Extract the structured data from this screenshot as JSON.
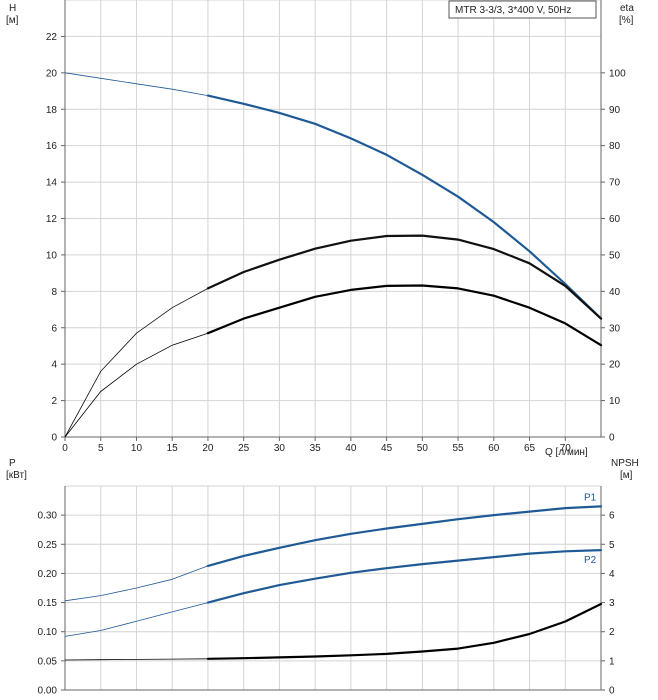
{
  "chart_data": [
    {
      "type": "line",
      "legend_box": "MTR 3-3/3, 3*400 V, 50Hz",
      "x_axis": {
        "label": "Q [л/мин]",
        "ticks": [
          "0",
          "5",
          "10",
          "15",
          "20",
          "25",
          "30",
          "35",
          "40",
          "45",
          "50",
          "55",
          "60",
          "65",
          "70"
        ],
        "range": [
          0,
          75
        ]
      },
      "y_left": {
        "label_line1": "H",
        "label_line2": "[м]",
        "ticks": [
          "0",
          "2",
          "4",
          "6",
          "8",
          "10",
          "12",
          "14",
          "16",
          "18",
          "20",
          "22"
        ],
        "range": [
          0,
          24
        ]
      },
      "y_right": {
        "label_line1": "eta",
        "label_line2": "[%]",
        "ticks": [
          "0",
          "10",
          "20",
          "30",
          "40",
          "50",
          "60",
          "70",
          "80",
          "90",
          "100"
        ],
        "range": [
          0,
          120
        ]
      },
      "grid": true,
      "series": [
        {
          "axis": "left",
          "color": "#1f5a96",
          "x": [
            0,
            5,
            10,
            15,
            20,
            25,
            30,
            35,
            40,
            45,
            50,
            55,
            60,
            65,
            70,
            75
          ],
          "y": [
            20,
            19.7,
            19.4,
            19.1,
            18.75,
            18.3,
            17.8,
            17.2,
            16.4,
            15.5,
            14.4,
            13.2,
            11.8,
            10.2,
            8.4,
            6.5
          ]
        },
        {
          "axis": "right",
          "color": "#111111",
          "x": [
            0,
            5,
            10,
            15,
            20,
            25,
            30,
            35,
            40,
            45,
            50,
            55,
            60,
            65,
            70,
            75
          ],
          "y": [
            0,
            18,
            28.5,
            35.5,
            40.8,
            45.3,
            48.7,
            51.7,
            53.9,
            55.2,
            55.3,
            54.2,
            51.6,
            47.7,
            41.5,
            32.5
          ]
        },
        {
          "axis": "right",
          "color": "#000000",
          "x": [
            0,
            5,
            10,
            15,
            20,
            25,
            30,
            35,
            40,
            45,
            50,
            55,
            60,
            65,
            70,
            75
          ],
          "y": [
            0,
            12.5,
            20,
            25.2,
            28.5,
            32.5,
            35.5,
            38.5,
            40.4,
            41.5,
            41.6,
            40.8,
            38.8,
            35.5,
            31.2,
            25.2
          ]
        }
      ]
    },
    {
      "type": "line",
      "x_axis": {
        "range": [
          0,
          75
        ]
      },
      "y_left": {
        "label_line1": "P",
        "label_line2": "[кВт]",
        "ticks": [
          "0.00",
          "0.05",
          "0.10",
          "0.15",
          "0.20",
          "0.25",
          "0.30"
        ],
        "range": [
          0,
          0.35
        ]
      },
      "y_right": {
        "label_line1": "NPSH",
        "label_line2": "[м]",
        "ticks": [
          "0",
          "1",
          "2",
          "3",
          "4",
          "5",
          "6"
        ],
        "range": [
          0,
          7
        ]
      },
      "grid": true,
      "series": [
        {
          "name": "P1",
          "axis": "left",
          "color": "#1f5a96",
          "x": [
            0,
            5,
            10,
            15,
            20,
            25,
            30,
            35,
            40,
            45,
            50,
            55,
            60,
            65,
            70,
            75
          ],
          "y": [
            0.153,
            0.162,
            0.175,
            0.19,
            0.213,
            0.23,
            0.244,
            0.257,
            0.268,
            0.277,
            0.285,
            0.293,
            0.3,
            0.306,
            0.312,
            0.315
          ]
        },
        {
          "name": "P2",
          "axis": "left",
          "color": "#1f5a96",
          "x": [
            0,
            5,
            10,
            15,
            20,
            25,
            30,
            35,
            40,
            45,
            50,
            55,
            60,
            65,
            70,
            75
          ],
          "y": [
            0.092,
            0.102,
            0.118,
            0.134,
            0.15,
            0.166,
            0.18,
            0.191,
            0.201,
            0.209,
            0.216,
            0.222,
            0.228,
            0.234,
            0.238,
            0.24
          ]
        },
        {
          "axis": "right",
          "color": "#000000",
          "x": [
            0,
            5,
            10,
            15,
            20,
            25,
            30,
            35,
            40,
            45,
            50,
            55,
            60,
            65,
            70,
            75
          ],
          "y": [
            1.03,
            1.04,
            1.05,
            1.06,
            1.07,
            1.09,
            1.12,
            1.15,
            1.19,
            1.24,
            1.32,
            1.42,
            1.62,
            1.92,
            2.35,
            2.95
          ]
        }
      ]
    }
  ]
}
